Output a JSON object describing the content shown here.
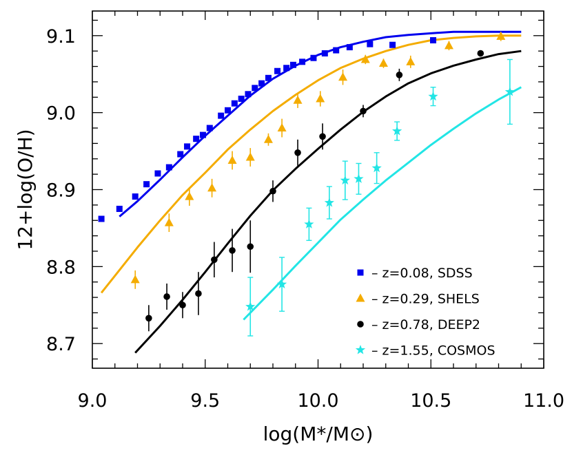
{
  "chart_data": {
    "type": "scatter",
    "xlabel": "log(M*/M⊙)",
    "ylabel": "12+log(O/H)",
    "xlim": [
      9.0,
      11.0
    ],
    "ylim": [
      8.668,
      9.132
    ],
    "x_ticks": [
      9.0,
      9.5,
      10.0,
      10.5,
      11.0
    ],
    "x_tick_labels": [
      "9.0",
      "9.5",
      "10.0",
      "10.5",
      "11.0"
    ],
    "y_ticks": [
      8.7,
      8.8,
      8.9,
      9.0,
      9.1
    ],
    "y_tick_labels": [
      "8.7",
      "8.8",
      "8.9",
      "9.0",
      "9.1"
    ],
    "x_minor_step": 0.1,
    "y_minor_step": 0.02,
    "grid": false,
    "legend_position": "bottom-right",
    "series": [
      {
        "name": "z=0.08, SDSS",
        "legend": "– z=0.08, SDSS",
        "marker": "square",
        "color": "#0000ee",
        "points": [
          [
            9.04,
            8.862
          ],
          [
            9.12,
            8.875
          ],
          [
            9.19,
            8.891
          ],
          [
            9.24,
            8.907
          ],
          [
            9.29,
            8.921
          ],
          [
            9.34,
            8.929
          ],
          [
            9.39,
            8.946
          ],
          [
            9.42,
            8.956
          ],
          [
            9.46,
            8.966
          ],
          [
            9.49,
            8.971
          ],
          [
            9.52,
            8.98
          ],
          [
            9.57,
            8.996
          ],
          [
            9.6,
            9.003
          ],
          [
            9.63,
            9.012
          ],
          [
            9.66,
            9.018
          ],
          [
            9.69,
            9.024
          ],
          [
            9.72,
            9.032
          ],
          [
            9.75,
            9.038
          ],
          [
            9.78,
            9.045
          ],
          [
            9.82,
            9.054
          ],
          [
            9.86,
            9.058
          ],
          [
            9.89,
            9.062
          ],
          [
            9.93,
            9.066
          ],
          [
            9.98,
            9.071
          ],
          [
            10.03,
            9.077
          ],
          [
            10.08,
            9.081
          ],
          [
            10.14,
            9.085
          ],
          [
            10.23,
            9.089
          ],
          [
            10.33,
            9.088
          ],
          [
            10.51,
            9.094
          ]
        ],
        "fit": [
          [
            9.12,
            8.865
          ],
          [
            9.2,
            8.885
          ],
          [
            9.3,
            8.913
          ],
          [
            9.4,
            8.942
          ],
          [
            9.5,
            8.97
          ],
          [
            9.6,
            8.996
          ],
          [
            9.7,
            9.022
          ],
          [
            9.8,
            9.044
          ],
          [
            9.9,
            9.061
          ],
          [
            10.0,
            9.075
          ],
          [
            10.1,
            9.085
          ],
          [
            10.2,
            9.092
          ],
          [
            10.3,
            9.098
          ],
          [
            10.4,
            9.101
          ],
          [
            10.5,
            9.103
          ],
          [
            10.6,
            9.105
          ],
          [
            10.7,
            9.105
          ],
          [
            10.8,
            9.105
          ],
          [
            10.9,
            9.105
          ]
        ]
      },
      {
        "name": "z=0.29, SHELS",
        "legend": "– z=0.29, SHELS",
        "marker": "triangle",
        "color": "#f4ac00",
        "points": [
          [
            9.19,
            8.783,
            0.012
          ],
          [
            9.34,
            8.857,
            0.012
          ],
          [
            9.43,
            8.891,
            0.012
          ],
          [
            9.53,
            8.902,
            0.012
          ],
          [
            9.62,
            8.938,
            0.012
          ],
          [
            9.7,
            8.942,
            0.012
          ],
          [
            9.78,
            8.965,
            0.008
          ],
          [
            9.84,
            8.98,
            0.012
          ],
          [
            9.91,
            9.016,
            0.01
          ],
          [
            10.01,
            9.018,
            0.01
          ],
          [
            10.11,
            9.046,
            0.01
          ],
          [
            10.21,
            9.069,
            0.006
          ],
          [
            10.29,
            9.064,
            0.006
          ],
          [
            10.41,
            9.066,
            0.008
          ],
          [
            10.58,
            9.087,
            0.006
          ],
          [
            10.81,
            9.099,
            0.006
          ]
        ],
        "fit": [
          [
            9.04,
            8.766
          ],
          [
            9.1,
            8.788
          ],
          [
            9.2,
            8.825
          ],
          [
            9.3,
            8.86
          ],
          [
            9.4,
            8.893
          ],
          [
            9.5,
            8.922
          ],
          [
            9.6,
            8.952
          ],
          [
            9.7,
            8.978
          ],
          [
            9.8,
            9.002
          ],
          [
            9.9,
            9.023
          ],
          [
            10.0,
            9.042
          ],
          [
            10.1,
            9.058
          ],
          [
            10.2,
            9.07
          ],
          [
            10.3,
            9.08
          ],
          [
            10.4,
            9.088
          ],
          [
            10.5,
            9.094
          ],
          [
            10.6,
            9.097
          ],
          [
            10.7,
            9.099
          ],
          [
            10.8,
            9.1
          ],
          [
            10.9,
            9.1
          ]
        ]
      },
      {
        "name": "z=0.78, DEEP2",
        "legend": "– z=0.78, DEEP2",
        "marker": "circle",
        "color": "#000000",
        "points": [
          [
            9.25,
            8.733,
            0.017
          ],
          [
            9.33,
            8.761,
            0.017
          ],
          [
            9.4,
            8.75,
            0.017
          ],
          [
            9.47,
            8.765,
            0.028
          ],
          [
            9.54,
            8.809,
            0.023
          ],
          [
            9.62,
            8.821,
            0.028
          ],
          [
            9.7,
            8.826,
            0.034
          ],
          [
            9.8,
            8.898,
            0.014
          ],
          [
            9.91,
            8.948,
            0.017
          ],
          [
            10.02,
            8.969,
            0.017
          ],
          [
            10.2,
            9.002,
            0.008
          ],
          [
            10.36,
            9.049,
            0.008
          ],
          [
            10.72,
            9.077,
            0.004
          ]
        ],
        "fit": [
          [
            9.19,
            8.688
          ],
          [
            9.3,
            8.723
          ],
          [
            9.4,
            8.757
          ],
          [
            9.5,
            8.793
          ],
          [
            9.6,
            8.83
          ],
          [
            9.7,
            8.866
          ],
          [
            9.8,
            8.899
          ],
          [
            9.9,
            8.927
          ],
          [
            10.0,
            8.953
          ],
          [
            10.1,
            8.978
          ],
          [
            10.2,
            9.001
          ],
          [
            10.3,
            9.021
          ],
          [
            10.4,
            9.038
          ],
          [
            10.5,
            9.051
          ],
          [
            10.6,
            9.061
          ],
          [
            10.7,
            9.069
          ],
          [
            10.8,
            9.076
          ],
          [
            10.9,
            9.08
          ]
        ]
      },
      {
        "name": "z=1.55, COSMOS",
        "legend": "– z=1.55, COSMOS",
        "marker": "star",
        "color": "#22e5e5",
        "points": [
          [
            9.7,
            8.748,
            0.038
          ],
          [
            9.84,
            8.777,
            0.035
          ],
          [
            9.96,
            8.855,
            0.021
          ],
          [
            10.05,
            8.883,
            0.021
          ],
          [
            10.12,
            8.912,
            0.025
          ],
          [
            10.18,
            8.914,
            0.02
          ],
          [
            10.26,
            8.928,
            0.02
          ],
          [
            10.35,
            8.976,
            0.012
          ],
          [
            10.51,
            9.021,
            0.012
          ],
          [
            10.85,
            9.027,
            0.042
          ]
        ],
        "fit": [
          [
            9.67,
            8.731
          ],
          [
            9.8,
            8.77
          ],
          [
            9.9,
            8.801
          ],
          [
            10.0,
            8.831
          ],
          [
            10.1,
            8.861
          ],
          [
            10.2,
            8.887
          ],
          [
            10.3,
            8.912
          ],
          [
            10.4,
            8.935
          ],
          [
            10.5,
            8.958
          ],
          [
            10.6,
            8.979
          ],
          [
            10.7,
            8.999
          ],
          [
            10.8,
            9.017
          ],
          [
            10.9,
            9.033
          ]
        ]
      }
    ]
  }
}
